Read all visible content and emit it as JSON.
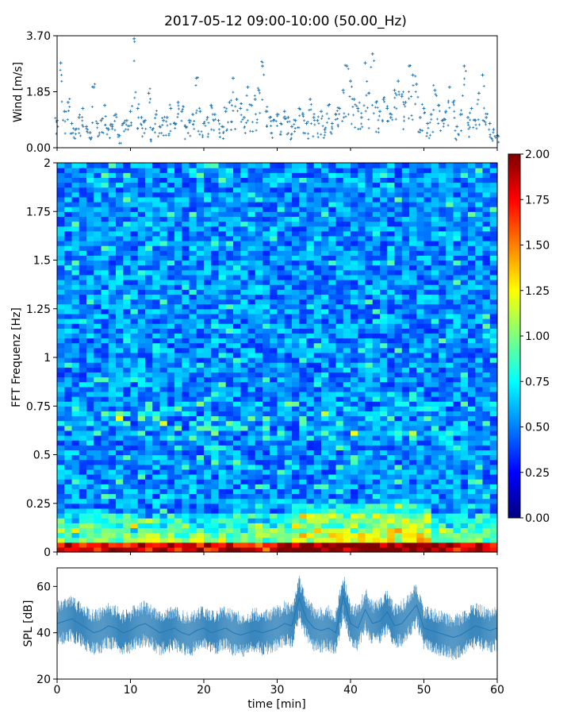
{
  "figure": {
    "title": "2017-05-12 09:00-10:00 (50.00_Hz)"
  },
  "chart_data": [
    {
      "type": "scatter",
      "panel": "wind",
      "title": "",
      "xlabel": "",
      "ylabel": "Wind [m/s]",
      "xlim": [
        0,
        60
      ],
      "ylim": [
        0,
        3.7
      ],
      "yticks": [
        "0.00",
        "1.85",
        "3.70"
      ],
      "series": [
        {
          "color": "#1f77b4",
          "x": [
            0,
            0.5,
            1,
            1.5,
            2,
            2.5,
            3,
            3.5,
            4,
            4.5,
            5,
            5.5,
            6,
            6.5,
            7,
            7.5,
            8,
            8.5,
            9,
            9.5,
            10,
            10.5,
            11,
            11.5,
            12,
            12.5,
            13,
            13.5,
            14,
            14.5,
            15,
            15.5,
            16,
            16.5,
            17,
            17.5,
            18,
            18.5,
            19,
            19.5,
            20,
            20.5,
            21,
            21.5,
            22,
            22.5,
            23,
            23.5,
            24,
            24.5,
            25,
            25.5,
            26,
            26.5,
            27,
            27.5,
            28,
            28.5,
            29,
            29.5,
            30,
            30.5,
            31,
            31.5,
            32,
            32.5,
            33,
            33.5,
            34,
            34.5,
            35,
            35.5,
            36,
            36.5,
            37,
            37.5,
            38,
            38.5,
            39,
            39.5,
            40,
            40.5,
            41,
            41.5,
            42,
            42.5,
            43,
            43.5,
            44,
            44.5,
            45,
            45.5,
            46,
            46.5,
            47,
            47.5,
            48,
            48.5,
            49,
            49.5,
            50,
            50.5,
            51,
            51.5,
            52,
            52.5,
            53,
            53.5,
            54,
            54.5,
            55,
            55.5,
            56,
            56.5,
            57,
            57.5,
            58,
            58.5,
            59,
            59.5,
            60
          ],
          "y": [
            0.9,
            2.8,
            1.2,
            1.5,
            0.8,
            0.6,
            1.0,
            1.3,
            0.7,
            0.5,
            2.0,
            0.8,
            0.9,
            1.4,
            0.6,
            0.7,
            1.1,
            0.4,
            0.8,
            0.9,
            1.2,
            3.6,
            1.3,
            1.0,
            0.9,
            1.8,
            0.6,
            1.1,
            0.7,
            0.9,
            1.0,
            1.3,
            0.8,
            1.5,
            1.2,
            0.7,
            0.9,
            1.1,
            2.3,
            1.2,
            0.8,
            1.0,
            1.4,
            1.1,
            0.9,
            0.7,
            1.2,
            1.5,
            2.3,
            1.6,
            1.3,
            1.0,
            2.0,
            1.4,
            1.6,
            1.9,
            2.7,
            1.2,
            1.0,
            0.9,
            1.1,
            0.8,
            1.2,
            1.0,
            0.7,
            0.9,
            1.3,
            1.1,
            0.8,
            1.6,
            1.0,
            0.9,
            1.2,
            0.6,
            1.4,
            0.8,
            1.1,
            1.3,
            1.9,
            2.7,
            2.2,
            1.6,
            1.3,
            1.0,
            2.8,
            1.8,
            3.1,
            1.5,
            1.2,
            1.6,
            1.3,
            1.0,
            1.9,
            2.2,
            1.7,
            1.5,
            2.7,
            2.4,
            2.1,
            1.0,
            1.3,
            0.8,
            1.1,
            1.9,
            1.4,
            0.9,
            1.2,
            2.0,
            1.5,
            0.7,
            1.1,
            2.7,
            1.0,
            1.3,
            0.9,
            1.8,
            2.4,
            1.0,
            0.8,
            0.6,
            0.4
          ]
        }
      ]
    },
    {
      "type": "heatmap",
      "panel": "spectrogram",
      "title": "",
      "xlabel": "",
      "ylabel": "FFT Frequenz [Hz]",
      "xlim": [
        0,
        60
      ],
      "ylim": [
        0,
        2
      ],
      "yticks": [
        "0",
        "0.25",
        "0.5",
        "0.75",
        "1",
        "1.25",
        "1.5",
        "1.75",
        "2"
      ],
      "colormap": "jet",
      "colorbar": {
        "range": [
          0,
          2
        ],
        "ticks": [
          "0.00",
          "0.25",
          "0.50",
          "0.75",
          "1.00",
          "1.25",
          "1.50",
          "1.75",
          "2.00"
        ]
      },
      "grid": {
        "time_bins": 60,
        "freq_bins": 80,
        "fill": "procedural"
      }
    },
    {
      "type": "line",
      "panel": "spl",
      "title": "",
      "xlabel": "time [min]",
      "ylabel": "SPL [dB]",
      "xlim": [
        0,
        60
      ],
      "ylim": [
        20,
        68
      ],
      "xticks": [
        "0",
        "10",
        "20",
        "30",
        "40",
        "50",
        "60"
      ],
      "yticks": [
        "20",
        "40",
        "60"
      ],
      "series": [
        {
          "color": "#1f77b4",
          "x": [
            0,
            1,
            2,
            3,
            4,
            5,
            6,
            7,
            8,
            9,
            10,
            11,
            12,
            13,
            14,
            15,
            16,
            17,
            18,
            19,
            20,
            21,
            22,
            23,
            24,
            25,
            26,
            27,
            28,
            29,
            30,
            31,
            32,
            33,
            34,
            35,
            36,
            37,
            38,
            39,
            40,
            41,
            42,
            43,
            44,
            45,
            46,
            47,
            48,
            49,
            50,
            51,
            52,
            53,
            54,
            55,
            56,
            57,
            58,
            59,
            60
          ],
          "y": [
            44,
            45,
            46,
            44,
            42,
            40,
            41,
            43,
            42,
            40,
            41,
            43,
            44,
            42,
            40,
            41,
            42,
            40,
            39,
            41,
            42,
            40,
            41,
            42,
            40,
            39,
            40,
            41,
            40,
            41,
            42,
            44,
            43,
            55,
            46,
            42,
            41,
            42,
            40,
            56,
            44,
            42,
            50,
            44,
            45,
            49,
            43,
            44,
            48,
            52,
            42,
            41,
            40,
            39,
            38,
            39,
            41,
            43,
            42,
            41,
            42
          ]
        }
      ]
    }
  ]
}
